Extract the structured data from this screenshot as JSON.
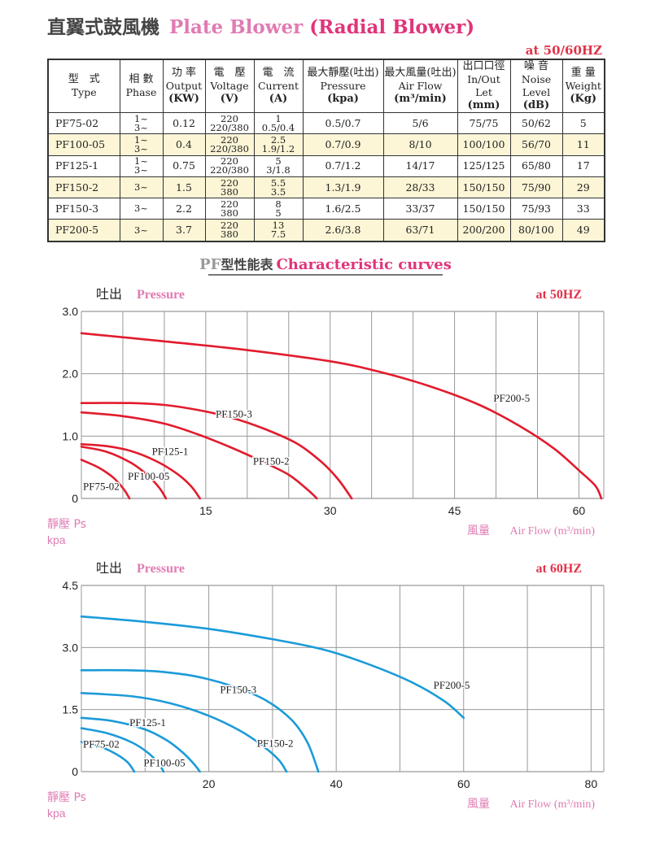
{
  "title": {
    "cn": "直翼式鼓風機",
    "en_main": "Plate Blower",
    "en_sub": "(Radial Blower)"
  },
  "freq_note": "at 50/60HZ",
  "table": {
    "headers": [
      {
        "cn": "型　式",
        "en": "Type",
        "unit": ""
      },
      {
        "cn": "相 數",
        "en": "Phase",
        "unit": ""
      },
      {
        "cn": "功 率",
        "en": "Output",
        "unit": "(KW)"
      },
      {
        "cn": "電　壓",
        "en": "Voltage",
        "unit": "(V)"
      },
      {
        "cn": "電　流",
        "en": "Current",
        "unit": "(A)"
      },
      {
        "cn": "最大靜壓(吐出)",
        "en": "Pressure",
        "unit": "(kpa)"
      },
      {
        "cn": "最大風量(吐出)",
        "en": "Air Flow",
        "unit": "(m³/min)"
      },
      {
        "cn": "出口口徑",
        "en": "In/Out Let",
        "unit": "(mm)"
      },
      {
        "cn": "噪 音",
        "en": "Noise Level",
        "unit": "(dB)"
      },
      {
        "cn": "重 量",
        "en": "Weight",
        "unit": "(Kg)"
      }
    ],
    "rows": [
      {
        "model": "PF75-02",
        "phase": [
          "1~",
          "3~"
        ],
        "output": "0.12",
        "voltage": [
          "220",
          "220/380"
        ],
        "current": [
          "1",
          "0.5/0.4"
        ],
        "pressure": "0.5/0.7",
        "airflow": "5/6",
        "inout": "75/75",
        "noise": "50/62",
        "weight": "5"
      },
      {
        "model": "PF100-05",
        "phase": [
          "1~",
          "3~"
        ],
        "output": "0.4",
        "voltage": [
          "220",
          "220/380"
        ],
        "current": [
          "2.5",
          "1.9/1.2"
        ],
        "pressure": "0.7/0.9",
        "airflow": "8/10",
        "inout": "100/100",
        "noise": "56/70",
        "weight": "11"
      },
      {
        "model": "PF125-1",
        "phase": [
          "1~",
          "3~"
        ],
        "output": "0.75",
        "voltage": [
          "220",
          "220/380"
        ],
        "current": [
          "5",
          "3/1.8"
        ],
        "pressure": "0.7/1.2",
        "airflow": "14/17",
        "inout": "125/125",
        "noise": "65/80",
        "weight": "17"
      },
      {
        "model": "PF150-2",
        "phase": [
          "3~"
        ],
        "output": "1.5",
        "voltage": [
          "220",
          "380"
        ],
        "current": [
          "5.5",
          "3.5"
        ],
        "pressure": "1.3/1.9",
        "airflow": "28/33",
        "inout": "150/150",
        "noise": "75/90",
        "weight": "29"
      },
      {
        "model": "PF150-3",
        "phase": [
          "3~"
        ],
        "output": "2.2",
        "voltage": [
          "220",
          "380"
        ],
        "current": [
          "8",
          "5"
        ],
        "pressure": "1.6/2.5",
        "airflow": "33/37",
        "inout": "150/150",
        "noise": "75/93",
        "weight": "33"
      },
      {
        "model": "PF200-5",
        "phase": [
          "3~"
        ],
        "output": "3.7",
        "voltage": [
          "220",
          "380"
        ],
        "current": [
          "13",
          "7.5"
        ],
        "pressure": "2.6/3.8",
        "airflow": "63/71",
        "inout": "200/200",
        "noise": "80/100",
        "weight": "49"
      }
    ]
  },
  "curves_heading": {
    "pf": "PF",
    "cn": "型性能表",
    "en": "Characteristic curves"
  },
  "chart_data": [
    {
      "type": "line",
      "ylabel_cn": "吐出",
      "ylabel_en": "Pressure",
      "freq": "at 50HZ",
      "xlabel_cn": "風量",
      "xlabel_en": "Air Flow (m³/min)",
      "yunit_cn": "靜壓 Ps",
      "yunit": "kpa",
      "xlim": [
        0,
        63
      ],
      "ylim": [
        0,
        3
      ],
      "xticks": [
        15,
        30,
        45,
        60
      ],
      "xtick_labels": [
        "15",
        "30",
        "45",
        "60"
      ],
      "yticks": [
        0,
        1,
        2,
        3
      ],
      "ytick_labels": [
        "0",
        "1.0",
        "2.0",
        "3.0"
      ],
      "grid": true,
      "line_color": "#e21b2d",
      "series": [
        {
          "name": "PF200-5",
          "points": [
            [
              0,
              2.65
            ],
            [
              10,
              2.52
            ],
            [
              20,
              2.38
            ],
            [
              30,
              2.2
            ],
            [
              36,
              2.03
            ],
            [
              42,
              1.8
            ],
            [
              48,
              1.5
            ],
            [
              53,
              1.15
            ],
            [
              57,
              0.8
            ],
            [
              60,
              0.45
            ],
            [
              62,
              0.2
            ],
            [
              62.7,
              0
            ]
          ]
        },
        {
          "name": "PF150-3",
          "points": [
            [
              0,
              1.53
            ],
            [
              6,
              1.53
            ],
            [
              10,
              1.5
            ],
            [
              14,
              1.42
            ],
            [
              18,
              1.3
            ],
            [
              22,
              1.12
            ],
            [
              26,
              0.88
            ],
            [
              29,
              0.58
            ],
            [
              31,
              0.3
            ],
            [
              32.6,
              0
            ]
          ]
        },
        {
          "name": "PF150-2",
          "points": [
            [
              0,
              1.38
            ],
            [
              5,
              1.32
            ],
            [
              10,
              1.2
            ],
            [
              14,
              1.03
            ],
            [
              18,
              0.82
            ],
            [
              22,
              0.58
            ],
            [
              25,
              0.38
            ],
            [
              27.2,
              0.15
            ],
            [
              28.4,
              0
            ]
          ]
        },
        {
          "name": "PF125-1",
          "points": [
            [
              0,
              0.87
            ],
            [
              3,
              0.84
            ],
            [
              6,
              0.76
            ],
            [
              9,
              0.6
            ],
            [
              11.5,
              0.4
            ],
            [
              13.2,
              0.2
            ],
            [
              14.3,
              0
            ]
          ]
        },
        {
          "name": "PF100-05",
          "points": [
            [
              0,
              0.83
            ],
            [
              3,
              0.75
            ],
            [
              6,
              0.57
            ],
            [
              8,
              0.37
            ],
            [
              9.4,
              0.17
            ],
            [
              10.2,
              0
            ]
          ]
        },
        {
          "name": "PF75-02",
          "points": [
            [
              0,
              0.62
            ],
            [
              2,
              0.5
            ],
            [
              3.8,
              0.34
            ],
            [
              5.1,
              0.15
            ],
            [
              5.8,
              0
            ]
          ]
        }
      ],
      "labels": [
        {
          "name": "PF200-5",
          "x": 49.5,
          "y": 1.55
        },
        {
          "name": "PF150-3",
          "x": 16,
          "y": 1.3
        },
        {
          "name": "PF150-2",
          "x": 20.5,
          "y": 0.54
        },
        {
          "name": "PF125-1",
          "x": 8.3,
          "y": 0.7
        },
        {
          "name": "PF100-05",
          "x": 5.4,
          "y": 0.3
        },
        {
          "name": "PF75-02",
          "x": 0,
          "y": 0.14
        }
      ]
    },
    {
      "type": "line",
      "ylabel_cn": "吐出",
      "ylabel_en": "Pressure",
      "freq": "at 60HZ",
      "xlabel_cn": "風量",
      "xlabel_en": "Air Flow (m³/min)",
      "yunit_cn": "靜壓 Ps",
      "yunit": "kpa",
      "xlim": [
        0,
        82
      ],
      "ylim": [
        0,
        4.5
      ],
      "xticks": [
        20,
        40,
        60,
        80
      ],
      "xtick_labels": [
        "20",
        "40",
        "60",
        "80"
      ],
      "yticks": [
        0,
        1.5,
        3,
        4.5
      ],
      "ytick_labels": [
        "0",
        "1.5",
        "3.0",
        "4.5"
      ],
      "grid": true,
      "line_color": "#1b9bd8",
      "series": [
        {
          "name": "PF200-5",
          "points": [
            [
              0,
              3.75
            ],
            [
              10,
              3.62
            ],
            [
              20,
              3.45
            ],
            [
              30,
              3.2
            ],
            [
              38,
              2.95
            ],
            [
              45,
              2.6
            ],
            [
              52,
              2.15
            ],
            [
              57,
              1.7
            ],
            [
              60,
              1.3
            ]
          ]
        },
        {
          "name": "PF150-3",
          "points": [
            [
              0,
              2.45
            ],
            [
              7,
              2.45
            ],
            [
              12,
              2.42
            ],
            [
              18,
              2.3
            ],
            [
              24,
              2.05
            ],
            [
              29,
              1.72
            ],
            [
              33,
              1.25
            ],
            [
              35.5,
              0.7
            ],
            [
              37.2,
              0
            ]
          ]
        },
        {
          "name": "PF150-2",
          "points": [
            [
              0,
              1.9
            ],
            [
              8,
              1.82
            ],
            [
              14,
              1.65
            ],
            [
              20,
              1.35
            ],
            [
              25,
              0.98
            ],
            [
              28.5,
              0.62
            ],
            [
              31,
              0.28
            ],
            [
              32.2,
              0
            ]
          ]
        },
        {
          "name": "PF125-1",
          "points": [
            [
              0,
              1.3
            ],
            [
              5,
              1.22
            ],
            [
              10,
              1.02
            ],
            [
              13.5,
              0.75
            ],
            [
              16,
              0.45
            ],
            [
              17.7,
              0.18
            ],
            [
              18.6,
              0
            ]
          ]
        },
        {
          "name": "PF100-05",
          "points": [
            [
              0,
              1.05
            ],
            [
              4,
              0.93
            ],
            [
              8,
              0.7
            ],
            [
              10.5,
              0.45
            ],
            [
              12.1,
              0.2
            ],
            [
              12.9,
              0
            ]
          ]
        },
        {
          "name": "PF75-02",
          "points": [
            [
              0,
              0.72
            ],
            [
              3,
              0.6
            ],
            [
              5.5,
              0.42
            ],
            [
              7.3,
              0.22
            ],
            [
              8.3,
              0
            ]
          ]
        }
      ],
      "labels": [
        {
          "name": "PF200-5",
          "x": 55,
          "y": 2.0
        },
        {
          "name": "PF150-3",
          "x": 21.5,
          "y": 1.9
        },
        {
          "name": "PF150-2",
          "x": 27.3,
          "y": 0.6
        },
        {
          "name": "PF125-1",
          "x": 7.3,
          "y": 1.1
        },
        {
          "name": "PF100-05",
          "x": 9.5,
          "y": 0.13
        },
        {
          "name": "PF75-02",
          "x": 0,
          "y": 0.58
        }
      ]
    }
  ]
}
